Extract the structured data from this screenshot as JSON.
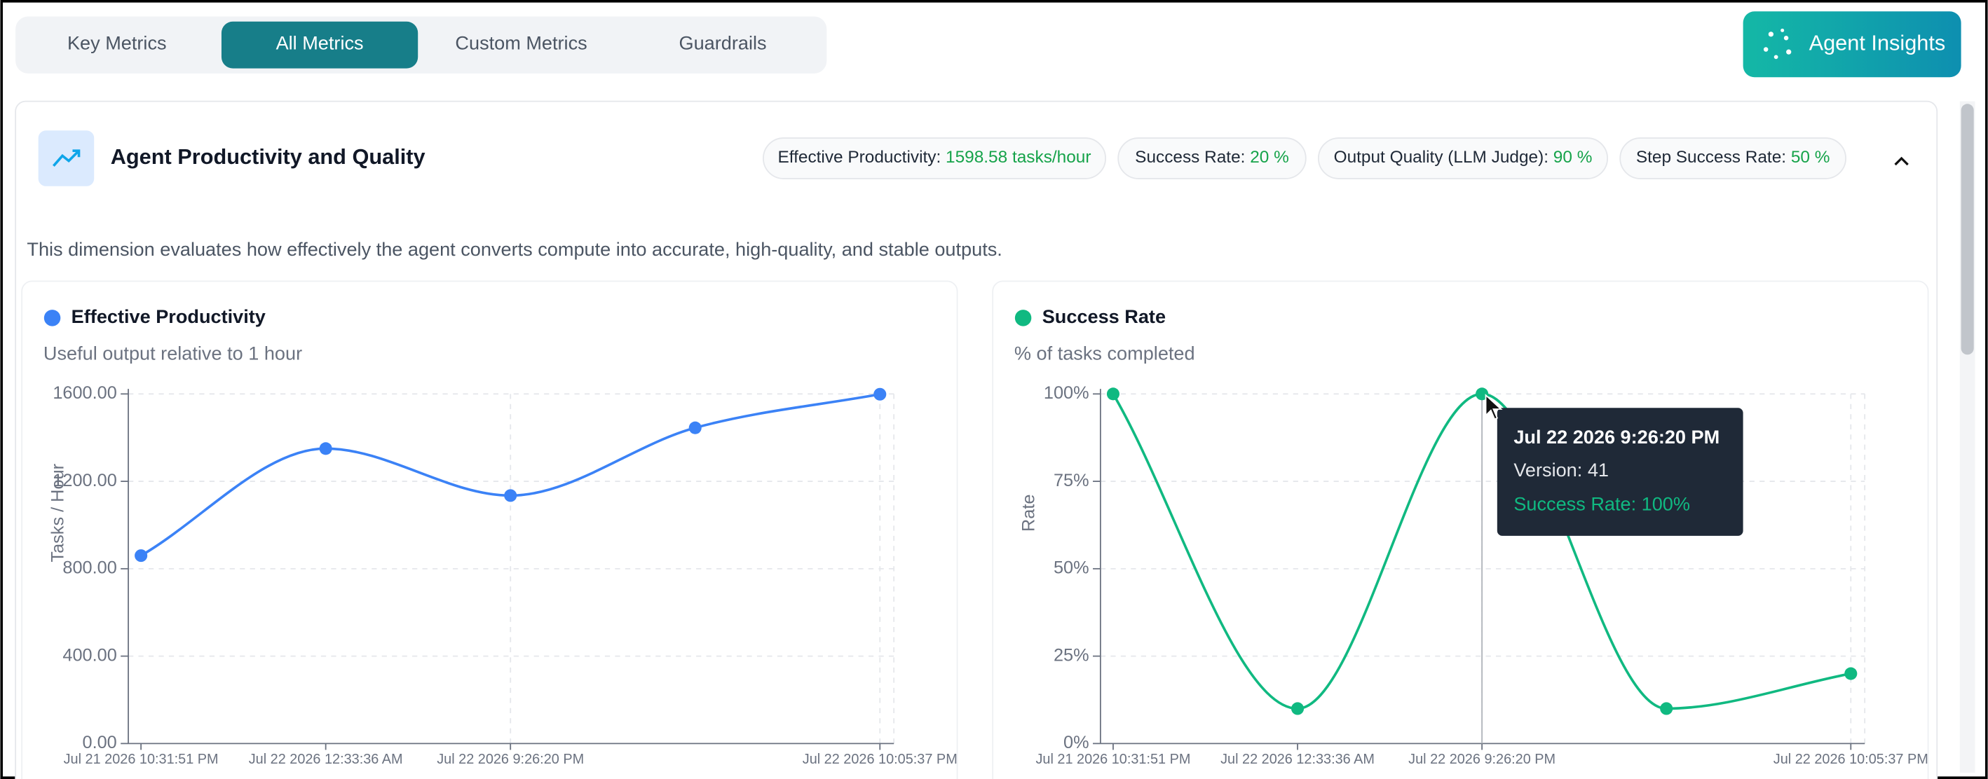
{
  "tabs": {
    "items": [
      "Key Metrics",
      "All Metrics",
      "Custom Metrics",
      "Guardrails"
    ],
    "active": 1
  },
  "button": "Agent Insights",
  "section": {
    "title": "Agent Productivity and Quality",
    "description": "This dimension evaluates how effectively the agent converts compute into accurate, high-quality, and stable outputs.",
    "pills": [
      {
        "label": "Effective Productivity:",
        "value": "1598.58 tasks/hour"
      },
      {
        "label": "Success Rate:",
        "value": "20 %"
      },
      {
        "label": "Output Quality (LLM Judge):",
        "value": "90 %"
      },
      {
        "label": "Step Success Rate:",
        "value": "50 %"
      }
    ]
  },
  "chart_data": [
    {
      "type": "line",
      "title": "Effective Productivity",
      "subtitle": "Useful output relative to 1 hour",
      "y_label": "Tasks / Hour",
      "color": "#3b82f6",
      "categories": [
        "Jul 21 2026 10:31:51 PM",
        "Jul 22 2026 12:33:36 AM",
        "Jul 22 2026 9:26:20 PM",
        null,
        "Jul 22 2026 10:05:37 PM"
      ],
      "values": [
        860,
        1350,
        1135,
        1445,
        1598.58
      ],
      "ylim": [
        0,
        1600
      ],
      "yticks": [
        {
          "value": 0,
          "label": "0.00"
        },
        {
          "value": 400,
          "label": "400.00"
        },
        {
          "value": 800,
          "label": "800.00"
        },
        {
          "value": 1200,
          "label": "1200.00"
        },
        {
          "value": 1600,
          "label": "1600.00"
        }
      ],
      "grid": true
    },
    {
      "type": "line",
      "title": "Success Rate",
      "subtitle": "% of tasks completed",
      "y_label": "Rate",
      "color": "#10b981",
      "categories": [
        "Jul 21 2026 10:31:51 PM",
        "Jul 22 2026 12:33:36 AM",
        "Jul 22 2026 9:26:20 PM",
        null,
        "Jul 22 2026 10:05:37 PM"
      ],
      "values": [
        100,
        10,
        100,
        10,
        20
      ],
      "ylim": [
        0,
        100
      ],
      "yticks": [
        {
          "value": 0,
          "label": "0%"
        },
        {
          "value": 25,
          "label": "25%"
        },
        {
          "value": 50,
          "label": "50%"
        },
        {
          "value": 75,
          "label": "75%"
        },
        {
          "value": 100,
          "label": "100%"
        }
      ],
      "grid": true,
      "tooltip": {
        "title": "Jul 22 2026 9:26:20 PM",
        "version": "Version: 41",
        "value": "Success Rate: 100%"
      }
    }
  ]
}
